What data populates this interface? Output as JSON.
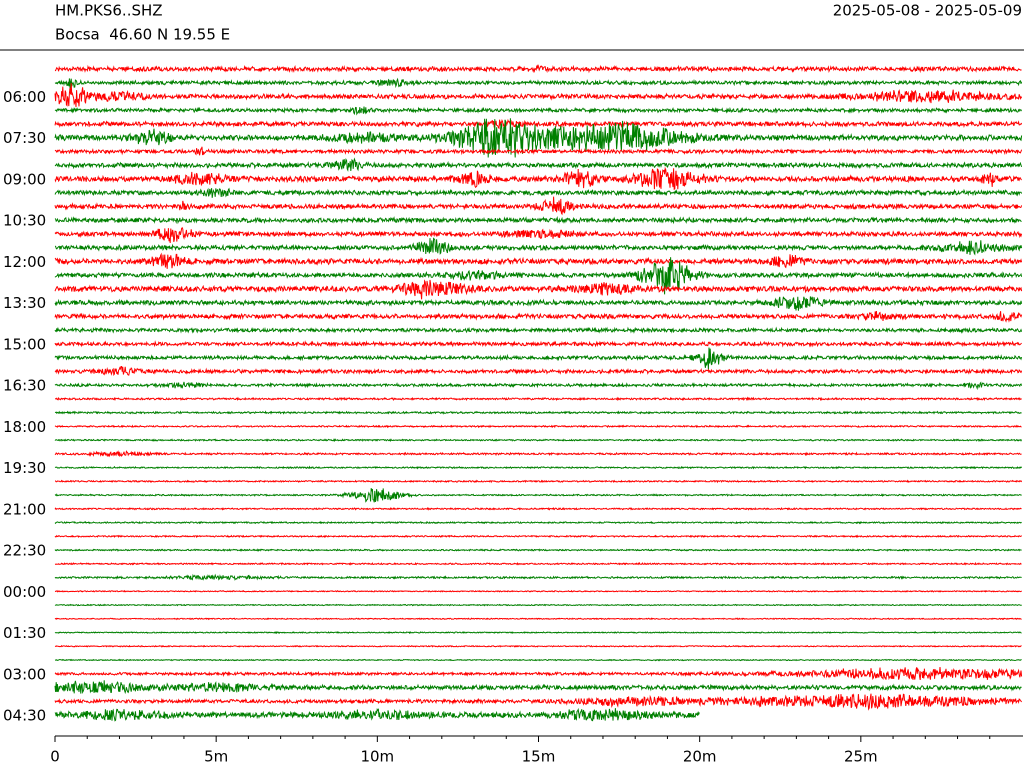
{
  "chart_data": {
    "type": "helicorder",
    "station": "HM.PKS6..SHZ",
    "location": "Bocsa  46.60 N 19.55 E",
    "date_range": "2025-05-08 - 2025-05-09",
    "categories": [
      null,
      null,
      "06:00",
      null,
      null,
      "07:30",
      null,
      null,
      "09:00",
      null,
      null,
      "10:30",
      null,
      null,
      "12:00",
      null,
      null,
      "13:30",
      null,
      null,
      "15:00",
      null,
      null,
      "16:30",
      null,
      null,
      "18:00",
      null,
      null,
      "19:30",
      null,
      null,
      "21:00",
      null,
      null,
      "22:30",
      null,
      null,
      "00:00",
      null,
      null,
      "01:30",
      null,
      null,
      "03:00",
      null,
      null,
      "04:30"
    ],
    "trace_colors": [
      "#ff0000",
      "#008000"
    ],
    "noise": [
      2.5,
      2,
      2.5,
      2,
      2.5,
      3,
      2,
      2.5,
      3,
      2.5,
      2.5,
      2.5,
      2.5,
      2.5,
      3,
      2.5,
      3,
      2.5,
      2.5,
      2,
      2,
      2,
      2,
      1.5,
      1,
      1,
      0.8,
      0.8,
      1,
      0.8,
      0.8,
      0.8,
      0.8,
      0.8,
      0.8,
      0.8,
      0.8,
      1,
      0.6,
      0.6,
      0.6,
      0.6,
      0.6,
      0.6,
      1.5,
      2.5,
      2,
      3
    ],
    "events": [
      [
        [
          15,
          3,
          0.3
        ]
      ],
      [
        [
          0.5,
          6,
          0.3
        ],
        [
          10.5,
          3,
          1
        ]
      ],
      [
        [
          0.5,
          12,
          1
        ],
        [
          2,
          4,
          1.5
        ],
        [
          27,
          6,
          4
        ]
      ],
      [
        [
          9.5,
          4,
          0.5
        ]
      ],
      [
        [
          14,
          4,
          1
        ]
      ],
      [
        [
          3,
          8,
          1
        ],
        [
          9.5,
          4,
          2
        ],
        [
          14,
          22,
          3
        ],
        [
          17.5,
          18,
          3.5
        ]
      ],
      [
        [
          4.5,
          6,
          0.2
        ]
      ],
      [
        [
          9,
          6,
          1
        ]
      ],
      [
        [
          4.5,
          6,
          1.5
        ],
        [
          13,
          7,
          1
        ],
        [
          16.3,
          10,
          1
        ],
        [
          19,
          10,
          2
        ],
        [
          29,
          6,
          0.5
        ]
      ],
      [
        [
          5,
          4,
          1
        ]
      ],
      [
        [
          4,
          4,
          0.3
        ],
        [
          15.5,
          9,
          1
        ]
      ],
      [],
      [
        [
          3.7,
          10,
          1
        ],
        [
          15,
          4,
          2
        ]
      ],
      [
        [
          11.7,
          10,
          1
        ],
        [
          28.5,
          6,
          2
        ]
      ],
      [
        [
          3.5,
          8,
          1
        ],
        [
          22.7,
          6,
          1
        ]
      ],
      [
        [
          13,
          4,
          2
        ],
        [
          19,
          18,
          1.5
        ]
      ],
      [
        [
          11.7,
          9,
          2
        ],
        [
          17,
          5,
          2
        ]
      ],
      [
        [
          23,
          8,
          1.3
        ]
      ],
      [
        [
          25.5,
          4,
          1
        ],
        [
          29.5,
          5,
          0.7
        ]
      ],
      [],
      [],
      [
        [
          20.3,
          14,
          0.7
        ]
      ],
      [
        [
          2,
          4,
          1.5
        ]
      ],
      [
        [
          4,
          3,
          1
        ],
        [
          28.5,
          4,
          0.5
        ]
      ],
      [],
      [],
      [],
      [],
      [
        [
          2,
          2,
          2
        ]
      ],
      [],
      [],
      [
        [
          10,
          8,
          1.5
        ]
      ],
      [],
      [],
      [],
      [],
      [],
      [
        [
          5,
          2,
          3
        ]
      ],
      [],
      [],
      [],
      [],
      [],
      [],
      [
        [
          27,
          6,
          8
        ]
      ],
      [
        [
          1,
          6,
          3
        ],
        [
          5,
          4,
          3
        ]
      ],
      [
        [
          18,
          4,
          4
        ],
        [
          25,
          7,
          8
        ]
      ],
      [
        [
          2,
          4,
          3
        ],
        [
          10,
          4,
          3
        ],
        [
          17,
          5,
          3
        ]
      ]
    ],
    "last_trace_end": 20,
    "xlim": [
      0,
      30
    ],
    "xticks": [
      0,
      {
        "value": 5,
        "label": "5m"
      },
      {
        "value": 10,
        "label": "10m"
      },
      {
        "value": 15,
        "label": "15m"
      },
      {
        "value": 20,
        "label": "20m"
      },
      {
        "value": 25,
        "label": "25m"
      }
    ],
    "xticks_minor": [
      1,
      2,
      3,
      4,
      6,
      7,
      8,
      9,
      11,
      12,
      13,
      14,
      16,
      17,
      18,
      19,
      21,
      22,
      23,
      24,
      26,
      27,
      28,
      29
    ]
  }
}
